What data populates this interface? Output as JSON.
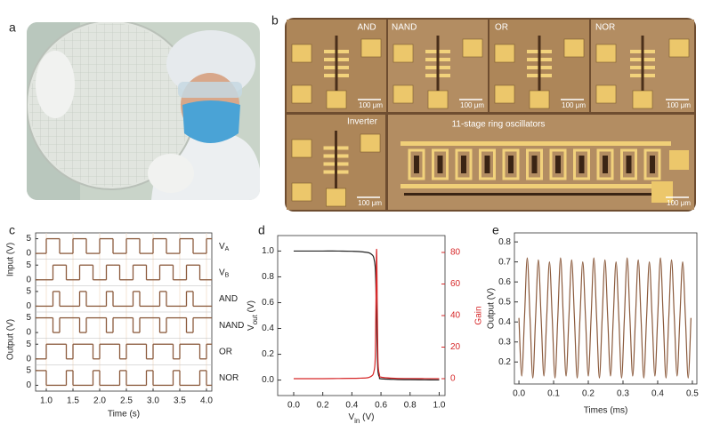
{
  "panel_labels": [
    "a",
    "b",
    "c",
    "d",
    "e"
  ],
  "micrographs": {
    "tiles": [
      "AND",
      "NAND",
      "OR",
      "NOR",
      "Inverter",
      "11-stage ring oscillators"
    ],
    "scale_bars": [
      "100 μm",
      "100 μm",
      "100 μm",
      "100 μm",
      "100 μm",
      "100 μm"
    ]
  },
  "chart_data": [
    {
      "type": "step",
      "x_label": "Time (s)",
      "y_labels": [
        "Input (V)",
        "Output (V)"
      ],
      "x": [
        0.875,
        1,
        1.125,
        1.25,
        1.375,
        1.5,
        1.625,
        1.75,
        1.875,
        2,
        2.125,
        2.25,
        2.375,
        2.5,
        2.625,
        2.75,
        2.875,
        3,
        3.125,
        3.25,
        3.375,
        3.5,
        3.625,
        3.75,
        3.875,
        4
      ],
      "xlim": [
        0.8,
        4.1
      ],
      "xticks": [
        {
          "value": 1,
          "label": "1.0"
        },
        1.5,
        {
          "value": 2,
          "label": "2.0"
        },
        2.5,
        {
          "value": 3,
          "label": "3.0"
        },
        3.5,
        {
          "value": 4,
          "label": "4.0"
        }
      ],
      "ylim": [
        -1,
        6
      ],
      "yticks": [
        0,
        5
      ],
      "grid": true,
      "series": [
        {
          "name": "V",
          "subscript": "A",
          "color": "#8b5a3c",
          "values": [
            0,
            5,
            5,
            0,
            0,
            5,
            5,
            0,
            0,
            5,
            5,
            0,
            0,
            5,
            5,
            0,
            0,
            5,
            5,
            0,
            0,
            5,
            5,
            0,
            0,
            5
          ]
        },
        {
          "name": "V",
          "subscript": "B",
          "color": "#8b5a3c",
          "values": [
            0,
            0,
            5,
            5,
            0,
            0,
            5,
            5,
            0,
            0,
            5,
            5,
            0,
            0,
            5,
            5,
            0,
            0,
            5,
            5,
            0,
            0,
            5,
            5,
            0,
            0
          ]
        },
        {
          "name": "AND",
          "color": "#8b5a3c",
          "values": [
            0,
            0,
            5,
            0,
            0,
            0,
            5,
            0,
            0,
            0,
            5,
            0,
            0,
            0,
            5,
            0,
            0,
            0,
            5,
            0,
            0,
            0,
            5,
            0,
            0,
            0
          ]
        },
        {
          "name": "NAND",
          "color": "#8b5a3c",
          "values": [
            5,
            5,
            0,
            5,
            5,
            5,
            0,
            5,
            5,
            5,
            0,
            5,
            5,
            5,
            0,
            5,
            5,
            5,
            0,
            5,
            5,
            5,
            0,
            5,
            5,
            5
          ]
        },
        {
          "name": "OR",
          "color": "#8b5a3c",
          "values": [
            0,
            5,
            5,
            5,
            0,
            5,
            5,
            5,
            0,
            5,
            5,
            5,
            0,
            5,
            5,
            5,
            0,
            5,
            5,
            5,
            0,
            5,
            5,
            5,
            0,
            5
          ]
        },
        {
          "name": "NOR",
          "color": "#8b5a3c",
          "values": [
            5,
            0,
            0,
            0,
            5,
            0,
            0,
            0,
            5,
            0,
            0,
            0,
            5,
            0,
            0,
            0,
            5,
            0,
            0,
            0,
            5,
            0,
            0,
            0,
            5,
            0
          ]
        }
      ]
    },
    {
      "type": "line",
      "x_label": {
        "text": "V",
        "sub": "in",
        "rest": " (V)"
      },
      "y_label": {
        "text": "V",
        "sub": "out",
        "rest": " (V)"
      },
      "y2_label": "Gain",
      "y2_color": "#d62728",
      "x": [
        0,
        0.1,
        0.2,
        0.3,
        0.4,
        0.45,
        0.5,
        0.52,
        0.54,
        0.55,
        0.56,
        0.565,
        0.57,
        0.575,
        0.58,
        0.59,
        0.6,
        0.7,
        0.8,
        0.9,
        1
      ],
      "xlim": [
        -0.11,
        1.04
      ],
      "xticks": [
        {
          "value": 0,
          "label": "0.0"
        },
        0.2,
        0.4,
        0.6,
        0.8,
        {
          "value": 1,
          "label": "1.0"
        }
      ],
      "ylim": [
        -0.12,
        1.12
      ],
      "yticks": [
        {
          "value": 0,
          "label": "0.0"
        },
        0.2,
        0.4,
        0.6,
        0.8,
        {
          "value": 1,
          "label": "1.0"
        }
      ],
      "y2lim": [
        -10.7,
        90.7
      ],
      "y2ticks": [
        0,
        20,
        40,
        60,
        80
      ],
      "series": [
        {
          "color": "#222222",
          "values": [
            1,
            1,
            1,
            1,
            0.998,
            0.996,
            0.99,
            0.985,
            0.97,
            0.95,
            0.88,
            0.72,
            0.45,
            0.18,
            0.06,
            0.02,
            0.01,
            0.005,
            0.003,
            0.002,
            0.001
          ]
        },
        {
          "color": "#d62728",
          "axis": "y2",
          "values": [
            0,
            0,
            0,
            0.1,
            0.2,
            0.3,
            0.5,
            0.9,
            2,
            4,
            12,
            45,
            82,
            42,
            10,
            2.5,
            1,
            0.2,
            0.1,
            0.05,
            0.02
          ]
        }
      ]
    },
    {
      "type": "line",
      "x_label": "Times (ms)",
      "y_label": "Output (V)",
      "x": [
        0,
        0.008,
        0.016,
        0.024,
        0.032,
        0.04,
        0.048,
        0.056,
        0.064,
        0.072,
        0.08,
        0.088,
        0.096,
        0.104,
        0.112,
        0.12,
        0.128,
        0.136,
        0.144,
        0.152,
        0.16,
        0.168,
        0.176,
        0.184,
        0.192,
        0.2,
        0.208,
        0.216,
        0.224,
        0.232,
        0.24,
        0.248,
        0.256,
        0.264,
        0.272,
        0.28,
        0.288,
        0.296,
        0.304,
        0.312,
        0.32,
        0.328,
        0.336,
        0.344,
        0.352,
        0.36,
        0.368,
        0.376,
        0.384,
        0.392,
        0.4,
        0.408,
        0.416,
        0.424,
        0.432,
        0.44,
        0.448,
        0.456,
        0.464,
        0.472,
        0.48,
        0.488,
        0.496
      ],
      "xlim": [
        -0.013,
        0.513
      ],
      "xticks": [
        {
          "value": 0,
          "label": "0.0"
        },
        0.1,
        0.2,
        0.3,
        0.4,
        0.5
      ],
      "ylim": [
        0.09,
        0.845
      ],
      "yticks": [
        0.2,
        0.3,
        0.4,
        0.5,
        0.6,
        0.7,
        0.8
      ],
      "series": [
        {
          "color": "#8b5a3c",
          "values": [
            0.42,
            0.13,
            0.42,
            0.72,
            0.42,
            0.12,
            0.42,
            0.71,
            0.42,
            0.13,
            0.42,
            0.7,
            0.42,
            0.12,
            0.42,
            0.72,
            0.42,
            0.13,
            0.42,
            0.71,
            0.42,
            0.12,
            0.42,
            0.7,
            0.42,
            0.13,
            0.42,
            0.72,
            0.42,
            0.12,
            0.42,
            0.71,
            0.42,
            0.13,
            0.42,
            0.7,
            0.42,
            0.12,
            0.42,
            0.72,
            0.42,
            0.13,
            0.42,
            0.71,
            0.42,
            0.12,
            0.42,
            0.7,
            0.42,
            0.13,
            0.42,
            0.72,
            0.42,
            0.12,
            0.42,
            0.71,
            0.42,
            0.13,
            0.42,
            0.7,
            0.42,
            0.12,
            0.42
          ]
        }
      ]
    }
  ]
}
